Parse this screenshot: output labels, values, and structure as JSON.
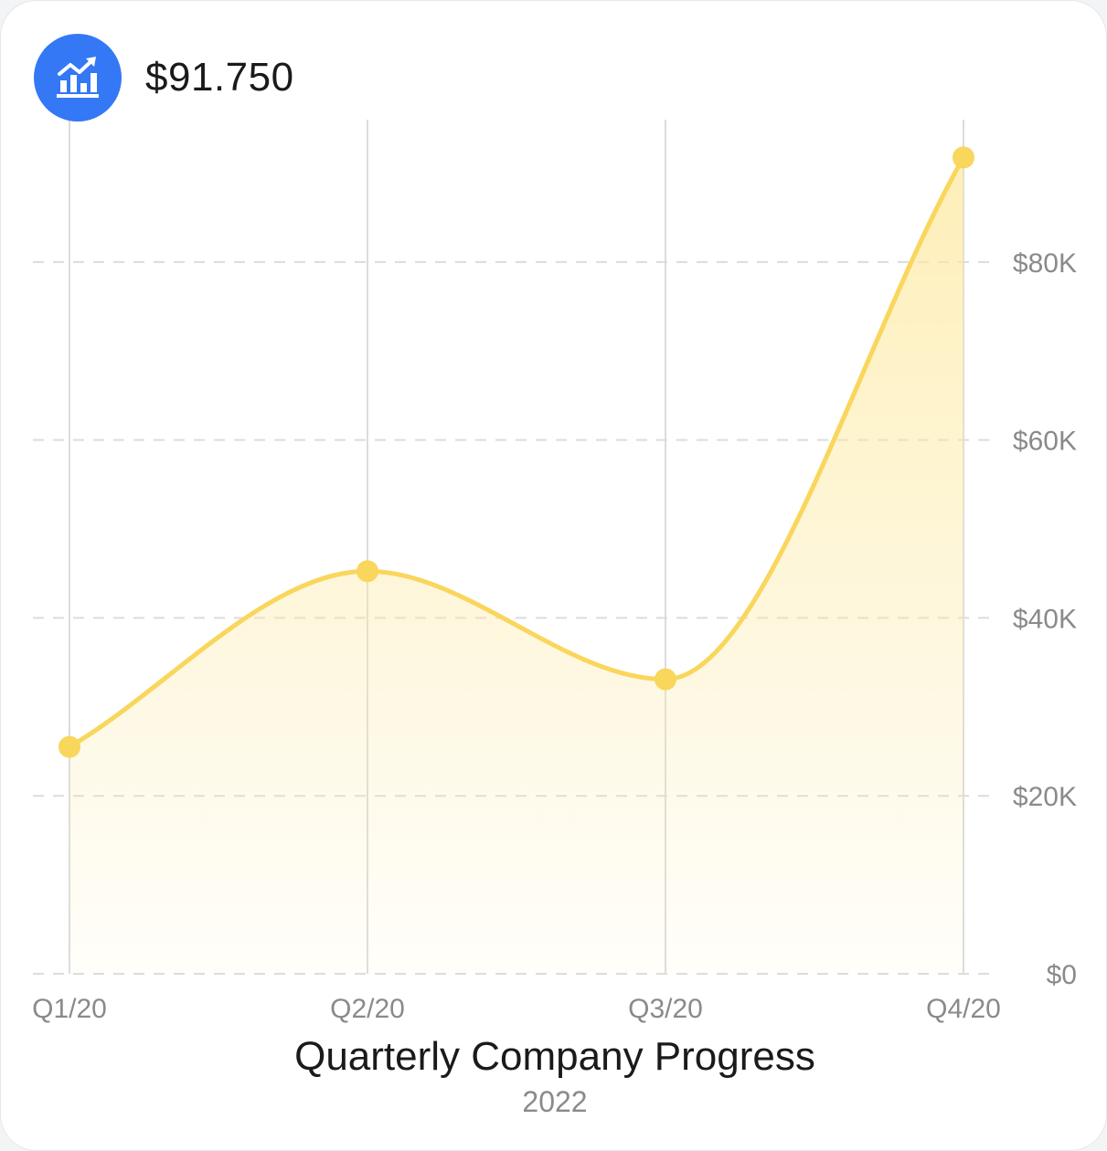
{
  "header": {
    "total_value": "$91.750",
    "icon": "growth-chart-icon",
    "icon_bg": "#3478f6"
  },
  "chart_data": {
    "type": "area",
    "title": "Quarterly Company Progress",
    "subtitle": "2022",
    "categories": [
      "Q1/20",
      "Q2/20",
      "Q3/20",
      "Q4/20"
    ],
    "series": [
      {
        "values": [
          25500,
          45250,
          33100,
          91750
        ]
      }
    ],
    "y_ticks": [
      0,
      20000,
      40000,
      60000,
      80000
    ],
    "y_tick_labels": [
      "$0",
      "$20K",
      "$40K",
      "$60K",
      "$80K"
    ],
    "ylim": [
      0,
      96000
    ],
    "y_axis_side": "right",
    "grid": {
      "horizontal": "dashed",
      "vertical": "solid"
    },
    "colors": {
      "line": "#f9d65c",
      "marker": "#f9d65c",
      "fill": "#fde9a0",
      "grid": "#dcdcdc",
      "label": "#8a8a8a"
    }
  }
}
